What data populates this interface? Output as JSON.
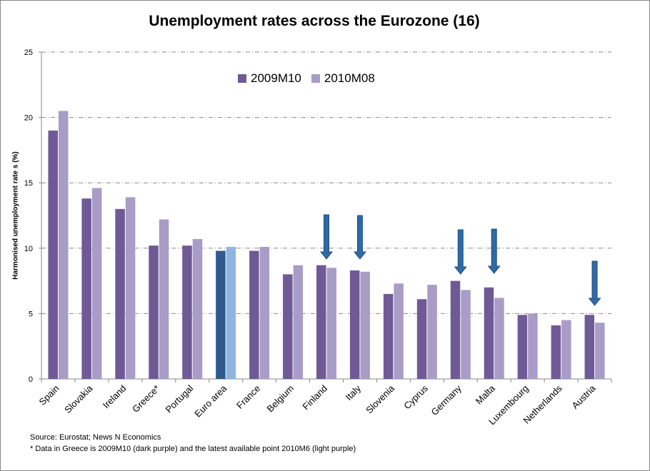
{
  "chart_data": {
    "type": "bar",
    "title": "Unemployment rates across the Eurozone (16)",
    "xlabel": "",
    "ylabel": "Harmonised unemployment rate s (%)",
    "ylim": [
      0,
      25
    ],
    "yticks": [
      0,
      5,
      10,
      15,
      20,
      25
    ],
    "grid": true,
    "legend_position": "top-center",
    "categories": [
      "Spain",
      "Slovakia",
      "Ireland",
      "Greece*",
      "Portugal",
      "Euro area",
      "France",
      "Belgium",
      "Finland",
      "Italy",
      "Slovenia",
      "Cyprus",
      "Germany",
      "Malta",
      "Luxembourg",
      "Netherlands",
      "Austria"
    ],
    "series": [
      {
        "name": "2009M10",
        "color": "#6f5a96",
        "values": [
          19.0,
          13.8,
          13.0,
          10.2,
          10.2,
          9.8,
          9.8,
          8.0,
          8.7,
          8.3,
          6.5,
          6.1,
          7.5,
          7.0,
          4.9,
          4.1,
          4.9
        ]
      },
      {
        "name": "2010M08",
        "color": "#a99cc7",
        "values": [
          20.5,
          14.6,
          13.9,
          12.2,
          10.7,
          10.1,
          10.1,
          8.7,
          8.5,
          8.2,
          7.3,
          7.2,
          6.8,
          6.2,
          5.0,
          4.5,
          4.3
        ]
      }
    ],
    "highlight": {
      "category": "Euro area",
      "colors": [
        "#2e5a8e",
        "#8fb4e0"
      ]
    },
    "arrows": [
      "Finland",
      "Italy",
      "Germany",
      "Malta",
      "Austria"
    ],
    "arrow_color": "#2f6aa5"
  },
  "notes": {
    "source": "Source: Eurostat; News N Economics",
    "footnote": "* Data in Greece is 2009M10 (dark purple) and the latest available point 2010M6 (light purple)"
  }
}
